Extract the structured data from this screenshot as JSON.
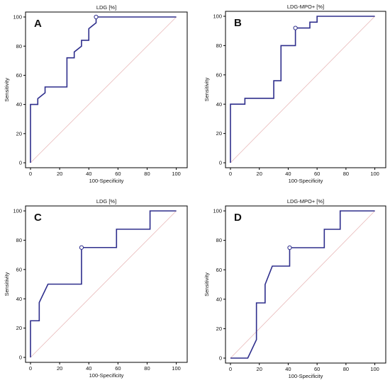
{
  "figure": {
    "background": "#ffffff"
  },
  "colors": {
    "roc_line": "#2e2e8c",
    "diagonal": "#e8b8b8",
    "frame": "#000000",
    "cut_marker_fill": "#ffffff"
  },
  "chart_data": [
    {
      "type": "line",
      "panel_letter": "A",
      "title": "LDG [%]",
      "xlabel": "100-Specificity",
      "ylabel": "Sensitivity",
      "xlim": [
        0,
        100
      ],
      "ylim": [
        0,
        100
      ],
      "xticks": [
        "0",
        "20",
        "40",
        "60",
        "80",
        "100"
      ],
      "yticks": [
        "0",
        "20",
        "40",
        "60",
        "80",
        "100"
      ],
      "grid": false,
      "diagonal_reference": true,
      "series": [
        {
          "x": [
            0,
            0,
            5,
            5,
            10,
            10,
            25,
            25,
            30,
            30,
            35,
            35,
            40,
            40,
            45,
            45,
            100
          ],
          "y": [
            0,
            40,
            40,
            44,
            48,
            52,
            52,
            72,
            72,
            76,
            80,
            84,
            84,
            92,
            96,
            100,
            100
          ]
        }
      ],
      "cut_point": {
        "x": 45,
        "y": 100
      }
    },
    {
      "type": "line",
      "panel_letter": "B",
      "title": "LDG-MPO+ [%]",
      "xlabel": "100-Specificity",
      "ylabel": "Sensitivity",
      "xlim": [
        0,
        100
      ],
      "ylim": [
        0,
        100
      ],
      "xticks": [
        "0",
        "20",
        "40",
        "60",
        "80",
        "100"
      ],
      "yticks": [
        "0",
        "20",
        "40",
        "60",
        "80",
        "100"
      ],
      "grid": false,
      "diagonal_reference": true,
      "series": [
        {
          "x": [
            0,
            0,
            10,
            10,
            30,
            30,
            35,
            35,
            45,
            45,
            55,
            55,
            60,
            60,
            100
          ],
          "y": [
            0,
            40,
            40,
            44,
            44,
            56,
            56,
            80,
            80,
            92,
            92,
            96,
            96,
            100,
            100
          ]
        }
      ],
      "cut_point": {
        "x": 45,
        "y": 92
      }
    },
    {
      "type": "line",
      "panel_letter": "C",
      "title": "LDG [%]",
      "xlabel": "100-Specificity",
      "ylabel": "Sensitivity",
      "xlim": [
        0,
        100
      ],
      "ylim": [
        0,
        100
      ],
      "xticks": [
        "0",
        "20",
        "40",
        "60",
        "80",
        "100"
      ],
      "yticks": [
        "0",
        "20",
        "40",
        "60",
        "80",
        "100"
      ],
      "grid": false,
      "diagonal_reference": true,
      "series": [
        {
          "x": [
            0,
            0,
            6,
            6,
            12,
            12,
            35,
            35,
            59,
            59,
            82,
            82,
            100
          ],
          "y": [
            0,
            25,
            25,
            37.5,
            50,
            50,
            50,
            75,
            75,
            87.5,
            87.5,
            100,
            100
          ]
        }
      ],
      "cut_point": {
        "x": 35,
        "y": 75
      }
    },
    {
      "type": "line",
      "panel_letter": "D",
      "title": "LDG-MPO+ [%]",
      "xlabel": "100-Specificity",
      "ylabel": "Sensitivity",
      "xlim": [
        0,
        100
      ],
      "ylim": [
        0,
        100
      ],
      "xticks": [
        "0",
        "20",
        "40",
        "60",
        "80",
        "100"
      ],
      "yticks": [
        "0",
        "20",
        "40",
        "60",
        "80",
        "100"
      ],
      "grid": false,
      "diagonal_reference": true,
      "series": [
        {
          "x": [
            0,
            12,
            18,
            18,
            24,
            24,
            29,
            41,
            41,
            65,
            65,
            76,
            76,
            100
          ],
          "y": [
            0,
            0,
            12.5,
            37.5,
            37.5,
            50,
            62.5,
            62.5,
            75,
            75,
            87.5,
            87.5,
            100,
            100
          ]
        }
      ],
      "cut_point": {
        "x": 41,
        "y": 75
      }
    }
  ]
}
